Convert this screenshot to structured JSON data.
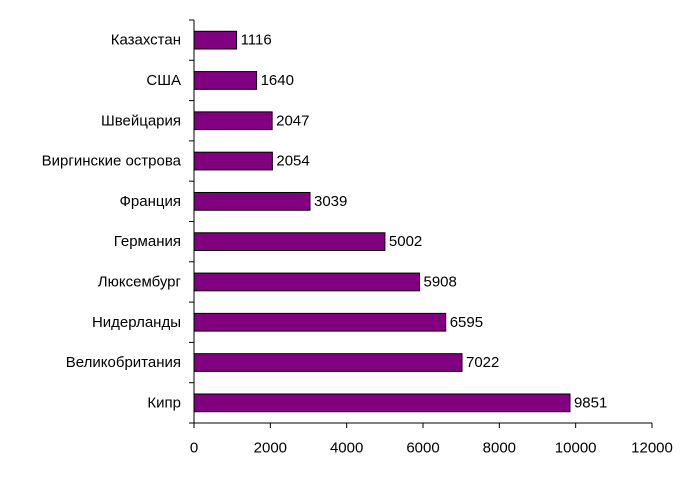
{
  "chart_data": {
    "type": "bar",
    "orientation": "horizontal",
    "categories": [
      "Казахстан",
      "США",
      "Швейцария",
      "Виргинские острова",
      "Франция",
      "Германия",
      "Люксембург",
      "Нидерланды",
      "Великобритания",
      "Кипр"
    ],
    "values": [
      1116,
      1640,
      2047,
      2054,
      3039,
      5002,
      5908,
      6595,
      7022,
      9851
    ],
    "value_labels": [
      "1116",
      "1640",
      "2047",
      "2054",
      "3039",
      "5002",
      "5908",
      "6595",
      "7022",
      "9851"
    ],
    "xlim": [
      0,
      12000
    ],
    "x_ticks": [
      0,
      2000,
      4000,
      6000,
      8000,
      10000,
      12000
    ],
    "x_tick_labels": [
      "0",
      "2000",
      "4000",
      "6000",
      "8000",
      "10000",
      "12000"
    ],
    "grid": false,
    "legend": "none",
    "bar_color": "#800080"
  }
}
